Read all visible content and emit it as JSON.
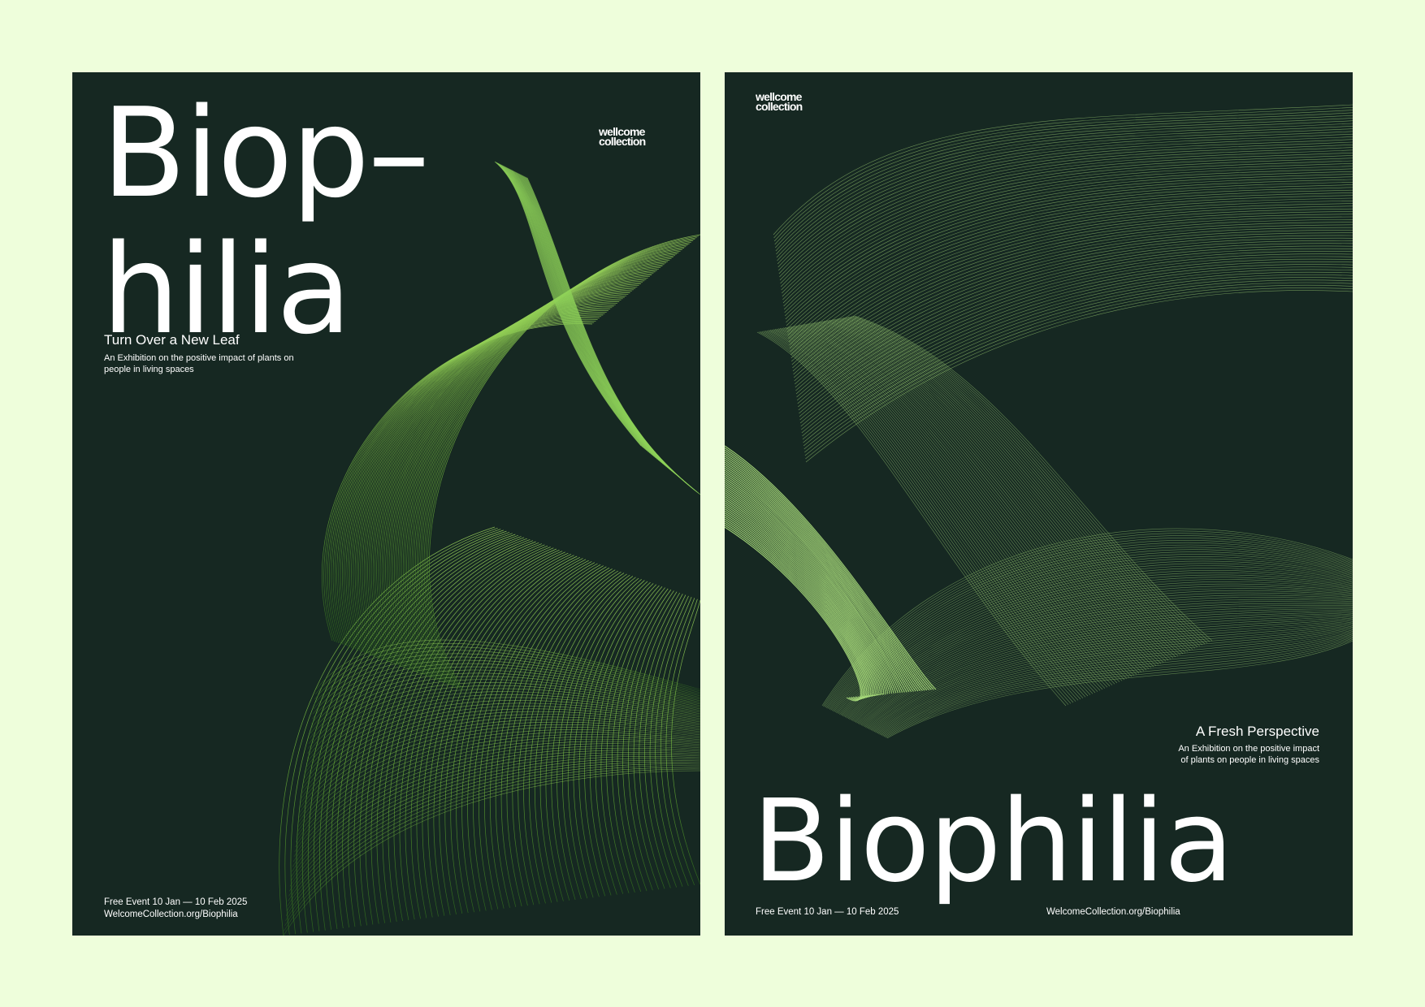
{
  "colors": {
    "background": "#eefedb",
    "poster": "#162822",
    "text": "#ffffff",
    "accent_green": "#8fd35a",
    "deep_green": "#2f6b1c"
  },
  "left_poster": {
    "title_line1": "Biop–",
    "title_line2": "hilia",
    "logo_line1": "wellcome",
    "logo_line2": "collection",
    "subtitle": "Turn Over a New Leaf",
    "description": "An Exhibition on the positive impact of plants on people in living spaces",
    "footer_date": "Free Event 10 Jan — 10 Feb  2025",
    "footer_url": "WelcomeCollection.org/Biophilia"
  },
  "right_poster": {
    "logo_line1": "wellcome",
    "logo_line2": "collection",
    "subtitle": "A Fresh Perspective",
    "description_line1": "An Exhibition on the positive impact",
    "description_line2": "of plants on people in living spaces",
    "title": "Biophilia",
    "footer_date": "Free Event 10 Jan — 10 Feb  2025",
    "footer_url": "WelcomeCollection.org/Biophilia"
  }
}
